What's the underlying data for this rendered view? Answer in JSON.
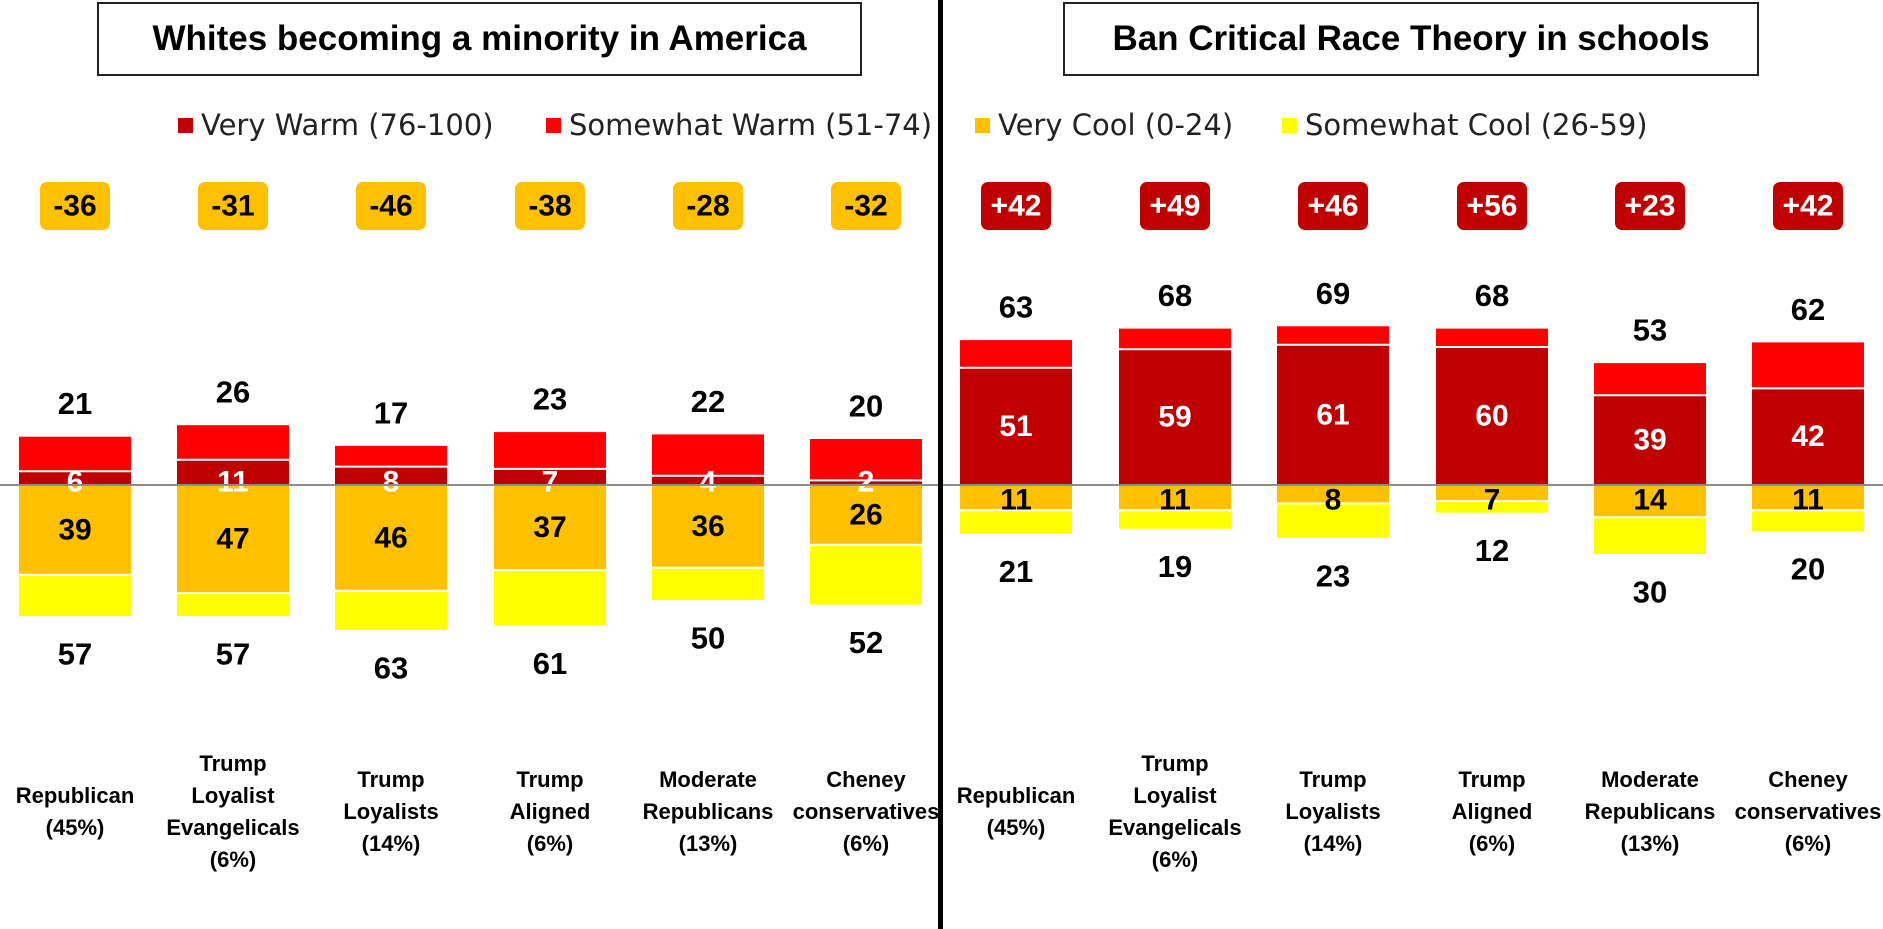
{
  "legend": [
    {
      "label": "Very Warm (76-100)",
      "color": "#c00000"
    },
    {
      "label": "Somewhat Warm (51-74)",
      "color": "#ff0000"
    },
    {
      "label": "Very Cool (0-24)",
      "color": "#ffc000"
    },
    {
      "label": "Somewhat Cool (26-59)",
      "color": "#ffff00"
    }
  ],
  "chart_data": [
    {
      "type": "bar",
      "title": "Whites becoming a minority in America",
      "categories": [
        "Republican (45%)",
        "Trump Loyalist Evangelicals (6%)",
        "Trump Loyalists (14%)",
        "Trump Aligned (6%)",
        "Moderate Republicans (13%)",
        "Cheney conservatives (6%)"
      ],
      "category_lines": [
        [
          "Republican",
          "(45%)"
        ],
        [
          "Trump",
          "Loyalist",
          "Evangelicals",
          "(6%)"
        ],
        [
          "Trump",
          "Loyalists",
          "(14%)"
        ],
        [
          "Trump",
          "Aligned",
          "(6%)"
        ],
        [
          "Moderate",
          "Republicans",
          "(13%)"
        ],
        [
          "Cheney",
          "conservatives",
          "(6%)"
        ]
      ],
      "series": [
        {
          "name": "Very Warm (76-100)",
          "values": [
            6,
            11,
            8,
            7,
            4,
            2
          ]
        },
        {
          "name": "Somewhat Warm (51-74)",
          "values": [
            15,
            15,
            9,
            16,
            18,
            18
          ]
        },
        {
          "name": "Very Cool (0-24)",
          "values": [
            39,
            47,
            46,
            37,
            36,
            26
          ]
        },
        {
          "name": "Somewhat Cool (26-59)",
          "values": [
            18,
            10,
            17,
            24,
            14,
            26
          ]
        }
      ],
      "warm_totals": [
        21,
        26,
        17,
        23,
        22,
        20
      ],
      "cool_totals": [
        57,
        57,
        63,
        61,
        50,
        52
      ],
      "net": [
        "-36",
        "-31",
        "-46",
        "-38",
        "-28",
        "-32"
      ]
    },
    {
      "type": "bar",
      "title": "Ban Critical Race Theory in schools",
      "categories": [
        "Republican (45%)",
        "Trump Loyalist Evangelicals (6%)",
        "Trump Loyalists (14%)",
        "Trump Aligned (6%)",
        "Moderate Republicans (13%)",
        "Cheney conservatives (6%)"
      ],
      "category_lines": [
        [
          "Republican",
          "(45%)"
        ],
        [
          "Trump",
          "Loyalist",
          "Evangelicals",
          "(6%)"
        ],
        [
          "Trump",
          "Loyalists",
          "(14%)"
        ],
        [
          "Trump",
          "Aligned",
          "(6%)"
        ],
        [
          "Moderate",
          "Republicans",
          "(13%)"
        ],
        [
          "Cheney",
          "conservatives",
          "(6%)"
        ]
      ],
      "series": [
        {
          "name": "Very Warm (76-100)",
          "values": [
            51,
            59,
            61,
            60,
            39,
            42
          ]
        },
        {
          "name": "Somewhat Warm (51-74)",
          "values": [
            12,
            9,
            8,
            8,
            14,
            20
          ]
        },
        {
          "name": "Very Cool (0-24)",
          "values": [
            11,
            11,
            8,
            7,
            14,
            11
          ]
        },
        {
          "name": "Somewhat Cool (26-59)",
          "values": [
            10,
            8,
            15,
            5,
            16,
            9
          ]
        }
      ],
      "warm_totals": [
        63,
        68,
        69,
        68,
        53,
        62
      ],
      "cool_totals": [
        21,
        19,
        23,
        12,
        30,
        20
      ],
      "net": [
        "+42",
        "+49",
        "+46",
        "+56",
        "+23",
        "+42"
      ]
    }
  ]
}
